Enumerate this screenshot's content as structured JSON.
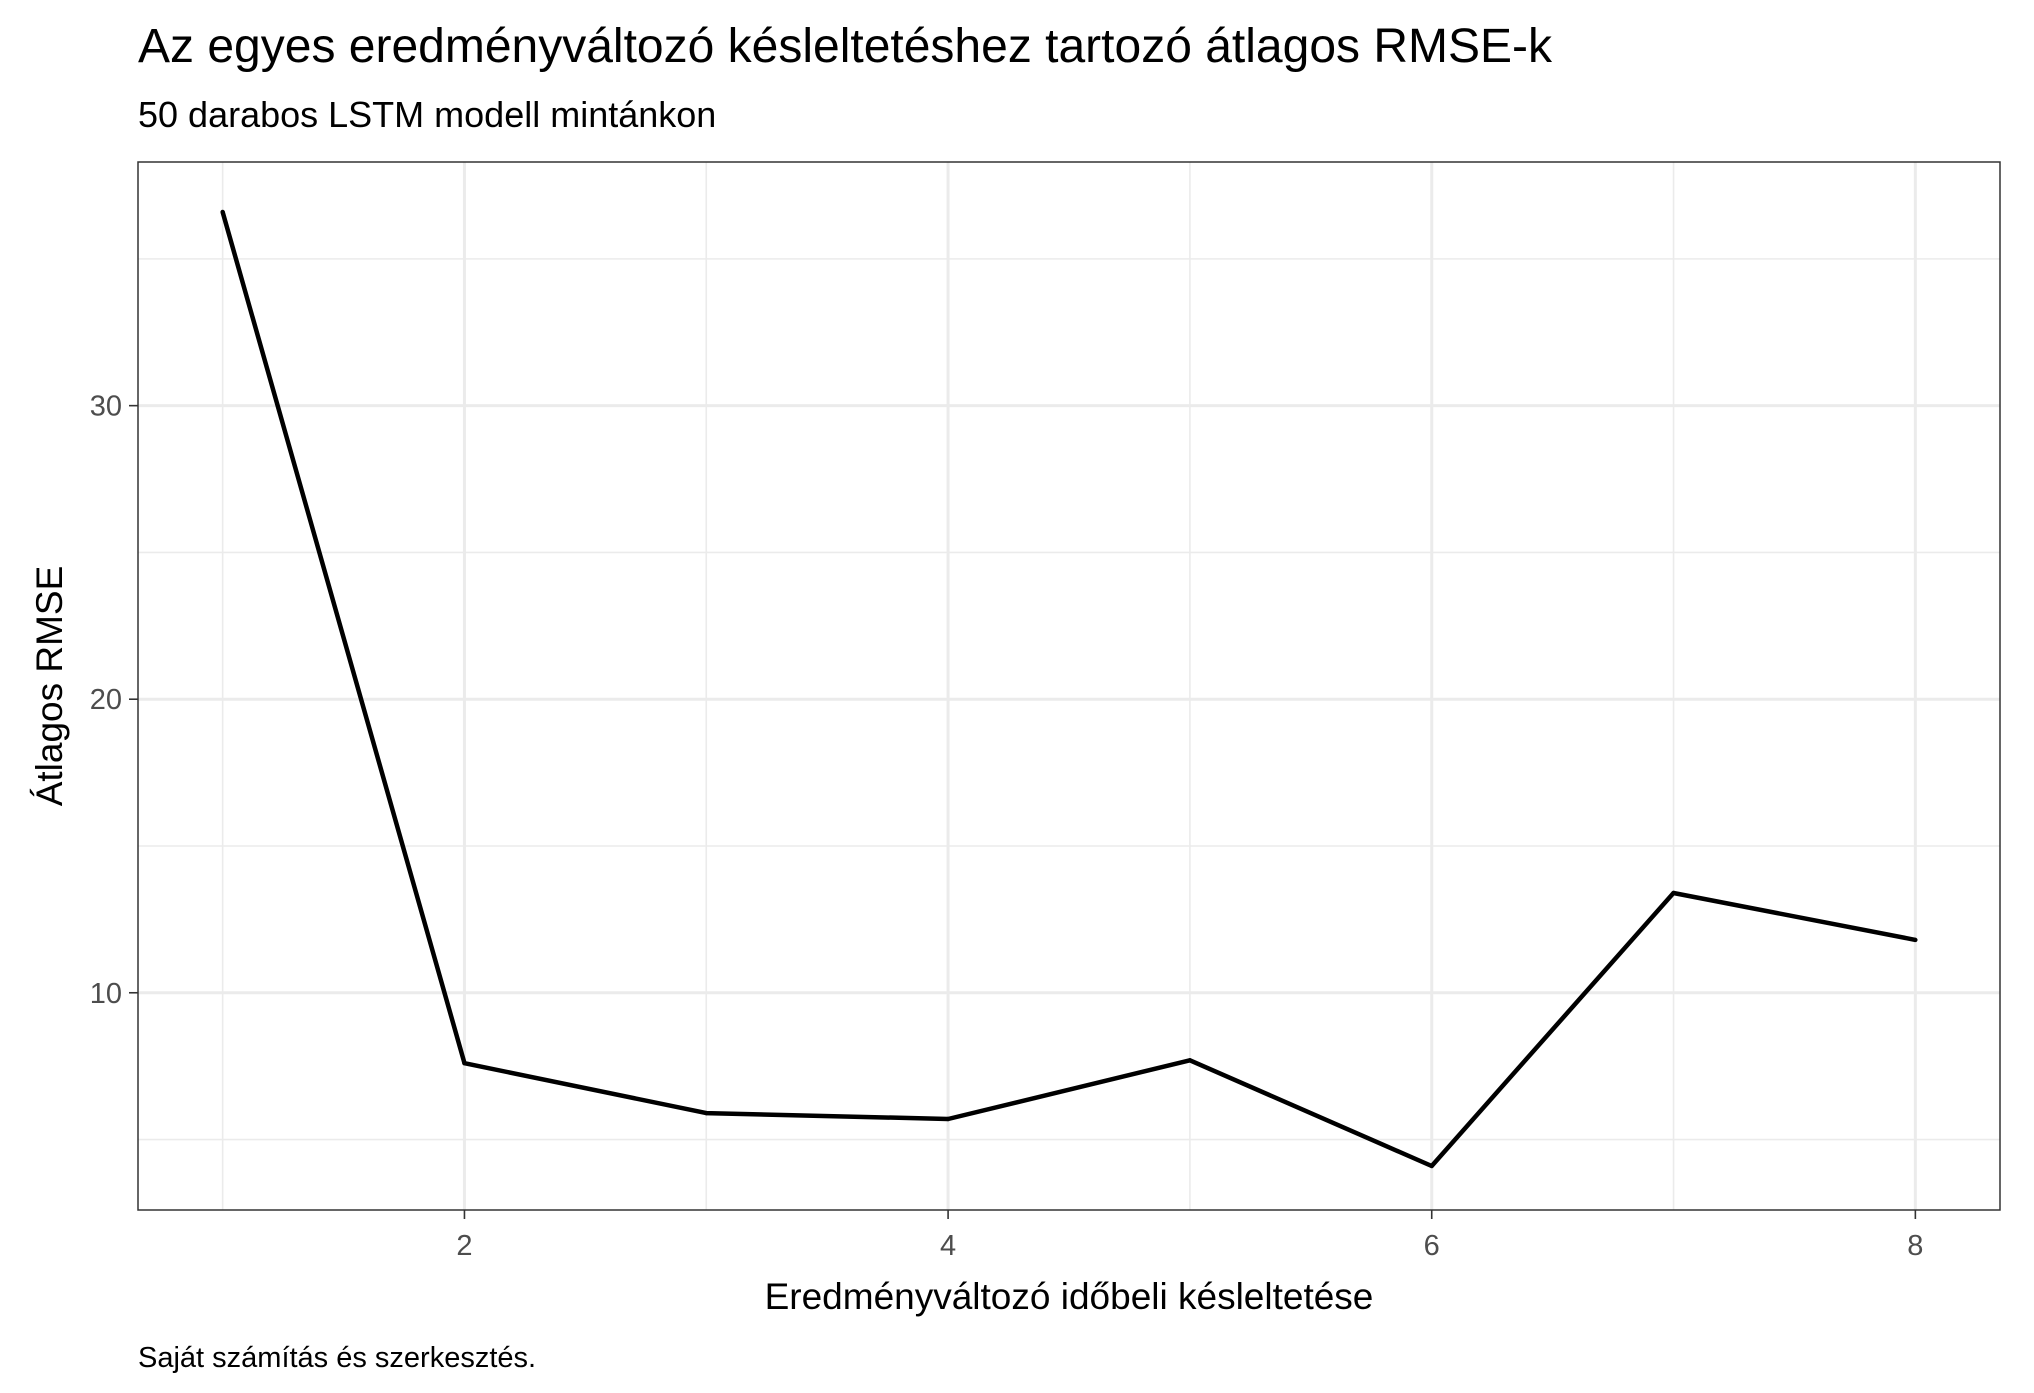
{
  "chart_data": {
    "type": "line",
    "title": "Az egyes eredményváltozó késleltetéshez tartozó átlagos RMSE-k",
    "subtitle": "50 darabos LSTM modell mintánkon",
    "xlabel": "Eredményváltozó időbeli késleltetése",
    "ylabel": "Átlagos RMSE",
    "caption": "Saját számítás és szerkesztés.",
    "x": [
      1,
      2,
      3,
      4,
      5,
      6,
      7,
      8
    ],
    "series": [
      {
        "values": [
          36.6,
          7.6,
          5.9,
          5.7,
          7.7,
          4.1,
          13.4,
          11.8
        ],
        "color": "#000000"
      }
    ],
    "xlim": [
      0.65,
      8.35
    ],
    "ylim": [
      2.6,
      38.3
    ],
    "x_ticks": [
      2,
      4,
      6,
      8
    ],
    "y_ticks": [
      10,
      20,
      30
    ],
    "grid": true,
    "legend": "none"
  }
}
